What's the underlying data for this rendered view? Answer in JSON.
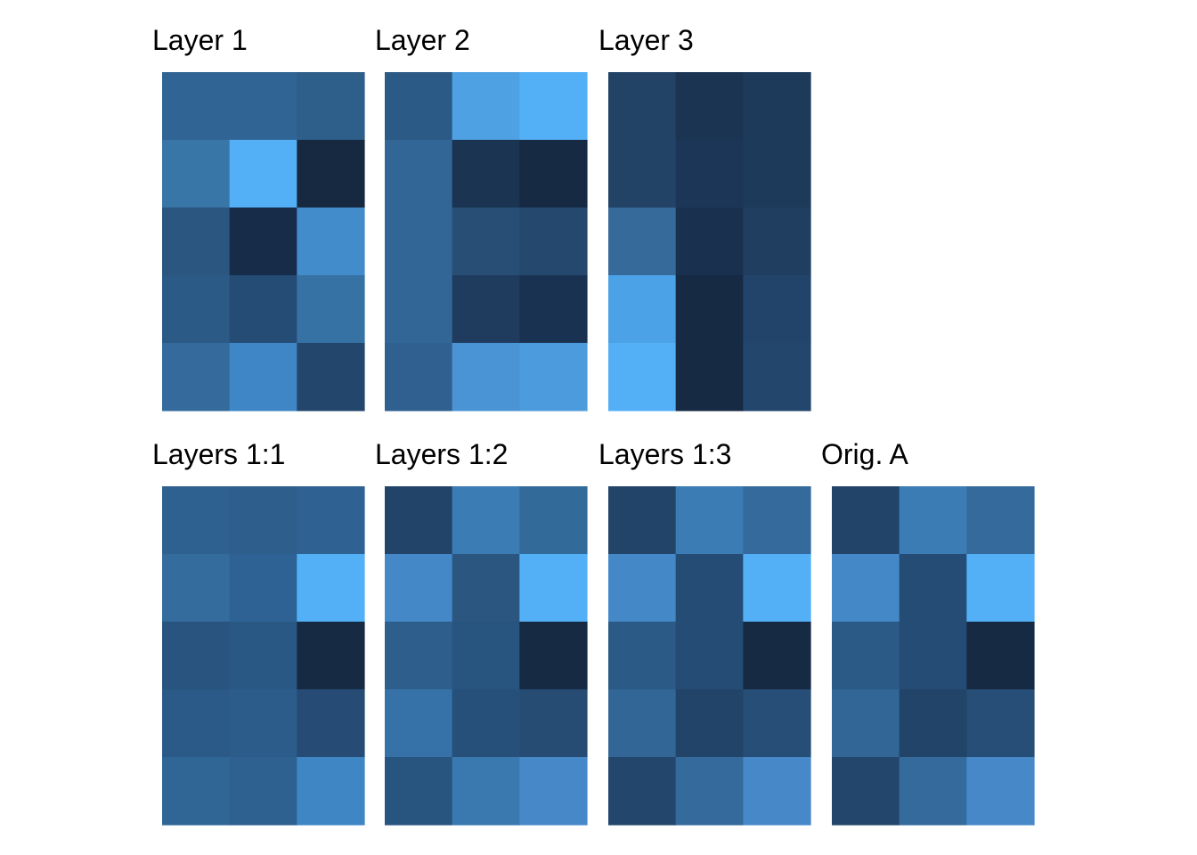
{
  "chart_data": [
    {
      "type": "heatmap",
      "title": "Layer 1",
      "rows": 5,
      "cols": 3,
      "values": [
        [
          "#306494",
          "#306494",
          "#2e5e8a"
        ],
        [
          "#3976a8",
          "#54b0f6",
          "#162940"
        ],
        [
          "#2a5680",
          "#162c48",
          "#438ccc"
        ],
        [
          "#2b5a86",
          "#244c74",
          "#3672a4"
        ],
        [
          "#346a9c",
          "#3f86c6",
          "#23466c"
        ]
      ]
    },
    {
      "type": "heatmap",
      "title": "Layer 2",
      "rows": 5,
      "cols": 3,
      "values": [
        [
          "#2c5a86",
          "#4ea2e4",
          "#54b0f6"
        ],
        [
          "#326696",
          "#1b3452",
          "#172a44"
        ],
        [
          "#326696",
          "#284e76",
          "#24486e"
        ],
        [
          "#326696",
          "#1f3c5e",
          "#1a3252"
        ],
        [
          "#2f6090",
          "#4a94d6",
          "#4c9bdc"
        ]
      ]
    },
    {
      "type": "heatmap",
      "title": "Layer 3",
      "rows": 5,
      "cols": 3,
      "values": [
        [
          "#224266",
          "#1a3452",
          "#1e3a5a"
        ],
        [
          "#224266",
          "#1b3656",
          "#1e3a5a"
        ],
        [
          "#356a9a",
          "#19314e",
          "#1f3e60"
        ],
        [
          "#4ca2e6",
          "#172a44",
          "#22446a"
        ],
        [
          "#54b0f6",
          "#172a44",
          "#23466c"
        ]
      ]
    },
    {
      "type": "heatmap",
      "title": "Layers 1:1",
      "rows": 5,
      "cols": 3,
      "values": [
        [
          "#2e6090",
          "#2e5e8c",
          "#2f6292"
        ],
        [
          "#346c9e",
          "#2f6294",
          "#54b0f6"
        ],
        [
          "#295480",
          "#2a5884",
          "#162a44"
        ],
        [
          "#2b5a88",
          "#2c5c8a",
          "#264c76"
        ],
        [
          "#306696",
          "#2e6090",
          "#3f86c4"
        ]
      ]
    },
    {
      "type": "heatmap",
      "title": "Layers 1:2",
      "rows": 5,
      "cols": 3,
      "values": [
        [
          "#224468",
          "#3c7cb4",
          "#326a9a"
        ],
        [
          "#4488c8",
          "#2a5680",
          "#54b0f6"
        ],
        [
          "#2e5e8c",
          "#285480",
          "#162a44"
        ],
        [
          "#3672a8",
          "#26507a",
          "#264c74"
        ],
        [
          "#285480",
          "#3a78b0",
          "#4688c8"
        ]
      ]
    },
    {
      "type": "heatmap",
      "title": "Layers 1:3",
      "rows": 5,
      "cols": 3,
      "values": [
        [
          "#224468",
          "#3c7cb4",
          "#346a9c"
        ],
        [
          "#4488c8",
          "#244c74",
          "#54b0f6"
        ],
        [
          "#2c5a86",
          "#244c74",
          "#162a44"
        ],
        [
          "#326696",
          "#224468",
          "#264e76"
        ],
        [
          "#23466c",
          "#346a9c",
          "#4688c8"
        ]
      ]
    },
    {
      "type": "heatmap",
      "title": "Orig. A",
      "rows": 5,
      "cols": 3,
      "values": [
        [
          "#224468",
          "#3c7cb4",
          "#346a9c"
        ],
        [
          "#4488c8",
          "#244c74",
          "#54b0f6"
        ],
        [
          "#2c5a86",
          "#244c74",
          "#162a44"
        ],
        [
          "#326696",
          "#224468",
          "#264e76"
        ],
        [
          "#23466c",
          "#346a9c",
          "#4688c8"
        ]
      ]
    }
  ]
}
